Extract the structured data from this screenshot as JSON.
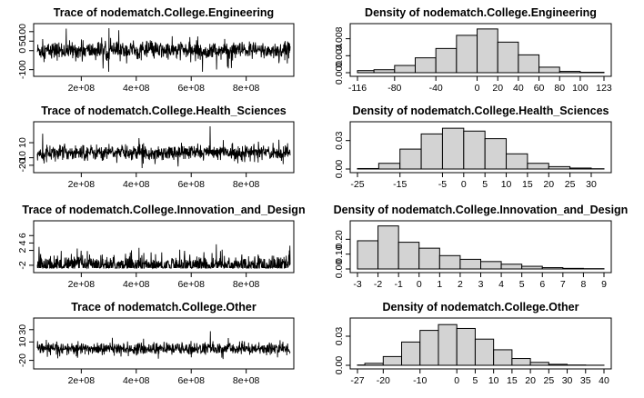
{
  "chart_data": [
    {
      "type": "line",
      "title": "Trace of nodematch.College.Engineering",
      "x_tick_labels": [
        "2e+08",
        "4e+08",
        "6e+08",
        "8e+08"
      ],
      "x_ticks": [
        200000000,
        400000000,
        600000000,
        800000000
      ],
      "xlim": [
        40000000,
        960000000
      ],
      "y_tick_labels": [
        "-100",
        "0",
        "50",
        "100"
      ],
      "y_ticks": [
        -100,
        0,
        50,
        100
      ],
      "ylim": [
        -116,
        123
      ],
      "center": 0,
      "spread": 42
    },
    {
      "type": "bar",
      "title": "Density of nodematch.College.Engineering",
      "bin_edges": [
        -116,
        -100,
        -80,
        -60,
        -40,
        -20,
        0,
        20,
        40,
        60,
        80,
        100,
        123
      ],
      "values": [
        0.0005,
        0.0007,
        0.0017,
        0.0035,
        0.0057,
        0.0088,
        0.0103,
        0.0072,
        0.0042,
        0.0013,
        0.0003,
        0.0001
      ],
      "x_tick_labels": [
        "-116",
        "-80",
        "-40",
        "0",
        "20",
        "40",
        "60",
        "80",
        "100",
        "123"
      ],
      "x_ticks": [
        -116,
        -80,
        -40,
        0,
        20,
        40,
        60,
        80,
        100,
        123
      ],
      "y_tick_labels": [
        "0.000",
        "0.004",
        "0.008"
      ],
      "y_ticks": [
        0,
        0.004,
        0.008
      ],
      "ylim": [
        0,
        0.0107
      ]
    },
    {
      "type": "line",
      "title": "Trace of nodematch.College.Health_Sciences",
      "x_tick_labels": [
        "2e+08",
        "4e+08",
        "6e+08",
        "8e+08"
      ],
      "x_ticks": [
        200000000,
        400000000,
        600000000,
        800000000
      ],
      "xlim": [
        40000000,
        960000000
      ],
      "y_tick_labels": [
        "-20",
        "-10",
        "10"
      ],
      "y_ticks": [
        -20,
        -10,
        10
      ],
      "ylim": [
        -25,
        33
      ],
      "center": -3,
      "spread": 9
    },
    {
      "type": "bar",
      "title": "Density of nodematch.College.Health_Sciences",
      "bin_edges": [
        -25,
        -20,
        -15,
        -10,
        -5,
        0,
        5,
        10,
        15,
        20,
        25,
        30,
        33
      ],
      "values": [
        0.0005,
        0.006,
        0.021,
        0.037,
        0.043,
        0.04,
        0.032,
        0.016,
        0.006,
        0.0025,
        0.001,
        0.0003
      ],
      "x_tick_labels": [
        "-25",
        "-15",
        "-5",
        "0",
        "5",
        "10",
        "15",
        "20",
        "25",
        "30"
      ],
      "x_ticks": [
        -25,
        -15,
        -5,
        0,
        5,
        10,
        15,
        20,
        25,
        30
      ],
      "y_tick_labels": [
        "0.00",
        "0.03"
      ],
      "y_ticks": [
        0,
        0.03
      ],
      "ylim": [
        0,
        0.046
      ]
    },
    {
      "type": "line",
      "title": "Trace of nodematch.College.Innovation_and_Design",
      "x_tick_labels": [
        "2e+08",
        "4e+08",
        "6e+08",
        "8e+08"
      ],
      "x_ticks": [
        200000000,
        400000000,
        600000000,
        800000000
      ],
      "xlim": [
        40000000,
        960000000
      ],
      "y_tick_labels": [
        "-2",
        "2",
        "4",
        "6"
      ],
      "y_ticks": [
        -2,
        2,
        4,
        6
      ],
      "ylim": [
        -3,
        9
      ],
      "center": -2,
      "spread": 2.5
    },
    {
      "type": "bar",
      "title": "Density of nodematch.College.Innovation_and_Design",
      "bin_edges": [
        -3,
        -2,
        -1,
        0,
        1,
        2,
        3,
        4,
        5,
        6,
        7,
        8,
        9
      ],
      "values": [
        0.19,
        0.29,
        0.18,
        0.14,
        0.09,
        0.065,
        0.05,
        0.032,
        0.018,
        0.009,
        0.004,
        0.002
      ],
      "x_tick_labels": [
        "-3",
        "-2",
        "-1",
        "0",
        "1",
        "2",
        "3",
        "4",
        "5",
        "6",
        "7",
        "8",
        "9"
      ],
      "x_ticks": [
        -3,
        -2,
        -1,
        0,
        1,
        2,
        3,
        4,
        5,
        6,
        7,
        8,
        9
      ],
      "y_tick_labels": [
        "0.00",
        "0.10",
        "0.20"
      ],
      "y_ticks": [
        0,
        0.1,
        0.2
      ],
      "ylim": [
        0,
        0.3
      ]
    },
    {
      "type": "line",
      "title": "Trace of nodematch.College.Other",
      "x_tick_labels": [
        "2e+08",
        "4e+08",
        "6e+08",
        "8e+08"
      ],
      "x_ticks": [
        200000000,
        400000000,
        600000000,
        800000000
      ],
      "xlim": [
        40000000,
        960000000
      ],
      "y_tick_labels": [
        "-20",
        "10",
        "30"
      ],
      "y_ticks": [
        -20,
        10,
        30
      ],
      "ylim": [
        -28,
        43
      ],
      "center": -1,
      "spread": 9
    },
    {
      "type": "bar",
      "title": "Density of nodematch.College.Other",
      "bin_edges": [
        -27,
        -25,
        -20,
        -15,
        -10,
        -5,
        0,
        5,
        10,
        15,
        20,
        25,
        30,
        35,
        40
      ],
      "values": [
        0.0003,
        0.002,
        0.009,
        0.024,
        0.036,
        0.042,
        0.038,
        0.027,
        0.016,
        0.007,
        0.003,
        0.001,
        0.0003,
        0.0001
      ],
      "x_tick_labels": [
        "-27",
        "-20",
        "-10",
        "0",
        "5",
        "10",
        "15",
        "20",
        "25",
        "30",
        "35",
        "40"
      ],
      "x_ticks": [
        -27,
        -20,
        -10,
        0,
        5,
        10,
        15,
        20,
        25,
        30,
        35,
        40
      ],
      "y_tick_labels": [
        "0.00",
        "0.03"
      ],
      "y_ticks": [
        0,
        0.03
      ],
      "ylim": [
        0,
        0.045
      ]
    }
  ]
}
